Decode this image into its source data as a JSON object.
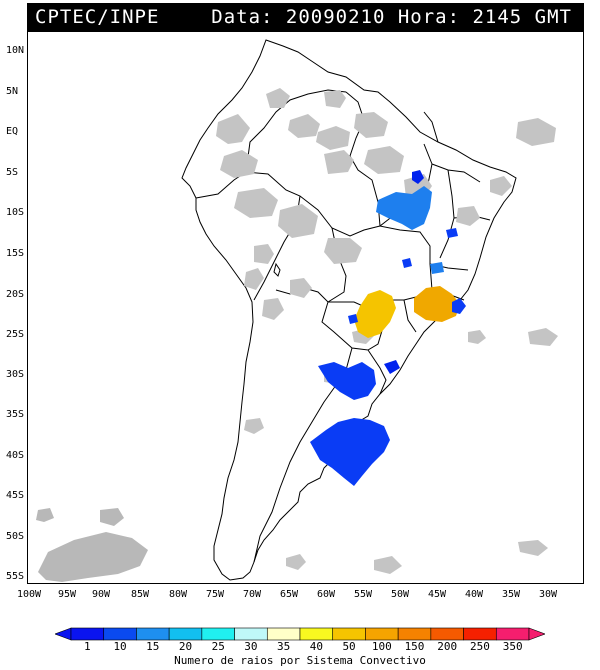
{
  "header": {
    "agency": "CPTEC/INPE",
    "stamp": "Data: 20090210 Hora: 2145 GMT"
  },
  "map": {
    "lat_labels": [
      "10N",
      "5N",
      "EQ",
      "5S",
      "10S",
      "15S",
      "20S",
      "25S",
      "30S",
      "35S",
      "40S",
      "45S",
      "50S",
      "55S"
    ],
    "lon_labels": [
      "100W",
      "95W",
      "90W",
      "85W",
      "80W",
      "75W",
      "70W",
      "65W",
      "60W",
      "55W",
      "50W",
      "45W",
      "40W",
      "35W",
      "30W"
    ],
    "colors": {
      "cloud": "#c4c4c4",
      "cloud_light": "#d6d6d6",
      "blue_dark": "#0022ee",
      "blue": "#0a3cf5",
      "blue_mid": "#1e7fee",
      "yellow": "#f5c400",
      "orange": "#f0a800",
      "border": "#000000"
    }
  },
  "colorbar": {
    "ticks": [
      "1",
      "10",
      "15",
      "20",
      "25",
      "30",
      "35",
      "40",
      "50",
      "100",
      "150",
      "200",
      "250",
      "350"
    ],
    "colors": [
      "#0a14f0",
      "#0a4af0",
      "#1e8ff0",
      "#12bff0",
      "#20f0f0",
      "#bff8f8",
      "#ffffc8",
      "#f8f820",
      "#f5c400",
      "#f5a400",
      "#f58200",
      "#f55a00",
      "#f52000",
      "#f51e6e"
    ],
    "title": "Numero de raios por Sistema Convectivo"
  }
}
